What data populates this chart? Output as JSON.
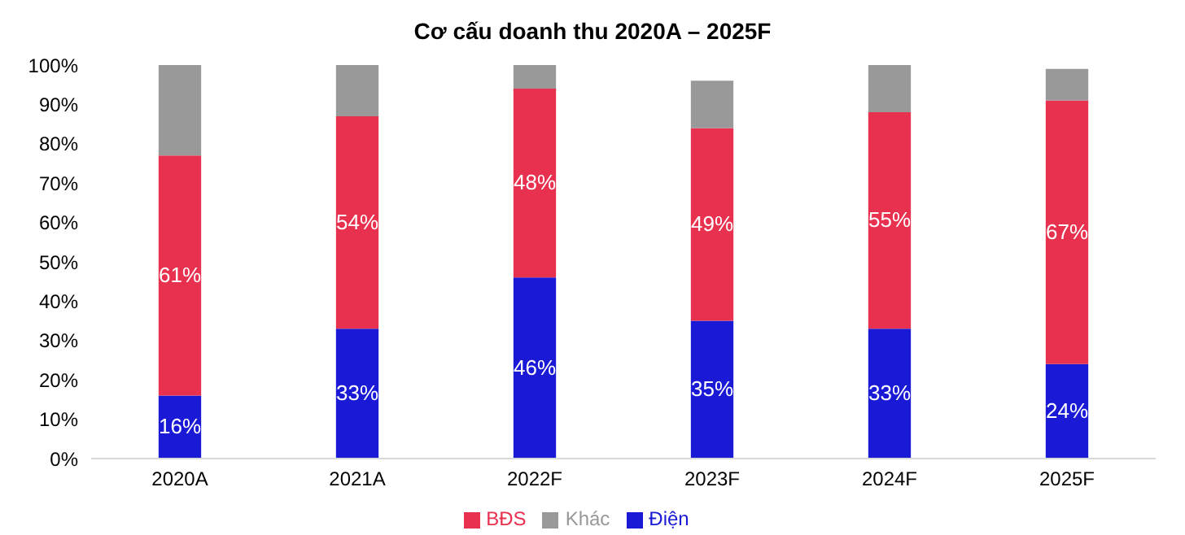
{
  "chart_data": {
    "type": "bar",
    "title": "Cơ cấu doanh thu 2020A – 2025F",
    "categories": [
      "2020A",
      "2021A",
      "2022F",
      "2023F",
      "2024F",
      "2025F"
    ],
    "stacked": true,
    "ylim": [
      0,
      100
    ],
    "yticks": [
      {
        "value": 0,
        "label": "0%"
      },
      {
        "value": 10,
        "label": "10%"
      },
      {
        "value": 20,
        "label": "20%"
      },
      {
        "value": 30,
        "label": "30%"
      },
      {
        "value": 40,
        "label": "40%"
      },
      {
        "value": 50,
        "label": "50%"
      },
      {
        "value": 60,
        "label": "60%"
      },
      {
        "value": 70,
        "label": "70%"
      },
      {
        "value": 80,
        "label": "80%"
      },
      {
        "value": 90,
        "label": "90%"
      },
      {
        "value": 100,
        "label": "100%"
      }
    ],
    "legend": "bottom",
    "grid": false,
    "series": [
      {
        "name": "Điện",
        "color": "#1a1ad6",
        "values": [
          16,
          33,
          46,
          35,
          33,
          24
        ],
        "value_labels": [
          "16%",
          "33%",
          "46%",
          "35%",
          "33%",
          "24%"
        ]
      },
      {
        "name": "BĐS",
        "color": "#e8304f",
        "values": [
          61,
          54,
          48,
          49,
          55,
          67
        ],
        "value_labels": [
          "61%",
          "54%",
          "48%",
          "49%",
          "55%",
          "67%"
        ]
      },
      {
        "name": "Khác",
        "color": "#999999",
        "values": [
          23,
          13,
          6,
          12,
          12,
          8
        ]
      }
    ]
  }
}
